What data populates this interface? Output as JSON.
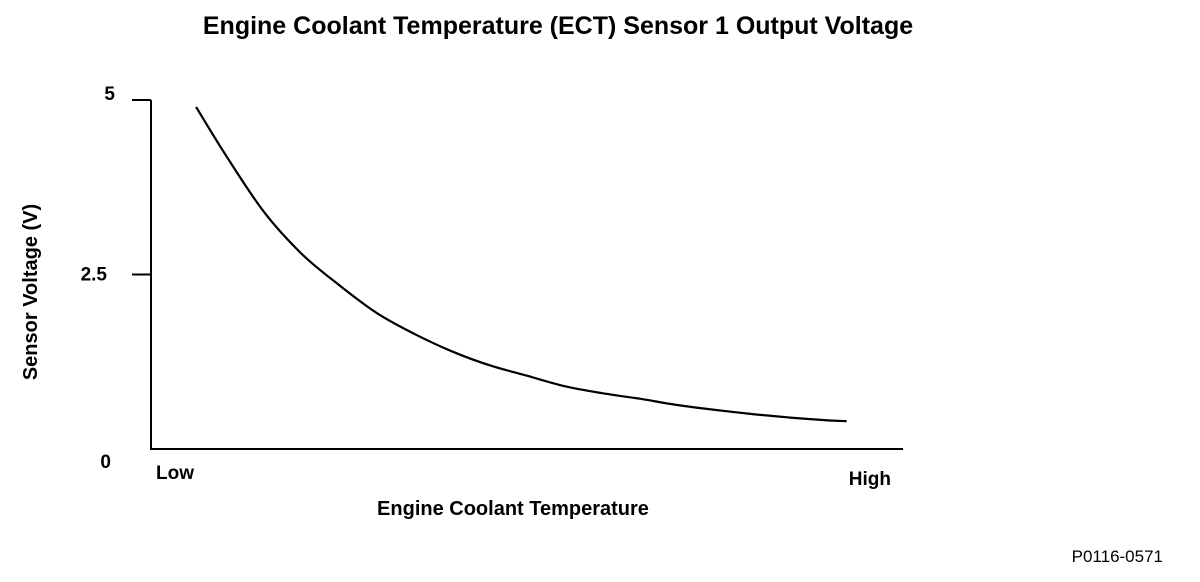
{
  "chart_data": {
    "type": "line",
    "title": "Engine Coolant Temperature (ECT) Sensor 1 Output Voltage",
    "xlabel": "Engine Coolant Temperature",
    "ylabel": "Sensor Voltage (V)",
    "x_tick_labels": [
      "Low",
      "High"
    ],
    "y_ticks": [
      {
        "value": 5,
        "label": "5"
      },
      {
        "value": 2.5,
        "label": "2.5"
      },
      {
        "value": 0,
        "label": "0"
      }
    ],
    "ylim": [
      0,
      5
    ],
    "xlim": [
      0,
      1
    ],
    "grid": false,
    "series": [
      {
        "x": [
          0.06,
          0.1,
          0.15,
          0.2,
          0.25,
          0.3,
          0.35,
          0.4,
          0.45,
          0.5,
          0.55,
          0.6,
          0.65,
          0.7,
          0.75,
          0.8,
          0.85,
          0.9,
          0.925
        ],
        "values": [
          4.9,
          4.2,
          3.4,
          2.8,
          2.35,
          1.95,
          1.65,
          1.4,
          1.2,
          1.05,
          0.9,
          0.8,
          0.72,
          0.63,
          0.56,
          0.5,
          0.45,
          0.41,
          0.4
        ]
      }
    ]
  },
  "figure_id": "P0116-0571",
  "line_color": "#000000"
}
